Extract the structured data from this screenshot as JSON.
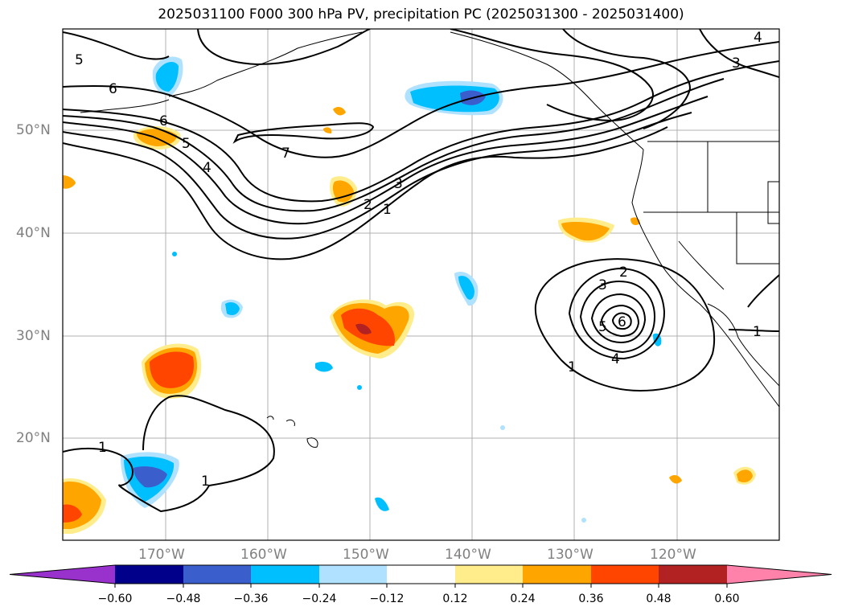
{
  "title": "2025031100 F000 300 hPa PV, precipitation PC (2025031300 - 2025031400)",
  "map": {
    "lat_labels": [
      "50°N",
      "40°N",
      "30°N",
      "20°N"
    ],
    "lon_labels": [
      "170°W",
      "160°W",
      "150°W",
      "140°W",
      "130°W",
      "120°W"
    ],
    "pv_contour_labels": [
      "1",
      "2",
      "3",
      "4",
      "5",
      "6",
      "7"
    ],
    "precip_fill_levels": [
      {
        "range": "-0.60..-0.48",
        "color": "#00008b"
      },
      {
        "range": "-0.48..-0.36",
        "color": "#3a5fcd"
      },
      {
        "range": "-0.36..-0.24",
        "color": "#00bfff"
      },
      {
        "range": "-0.24..-0.12",
        "color": "#b0e2ff"
      },
      {
        "range": "0.12..0.24",
        "color": "#ffec8b"
      },
      {
        "range": "0.24..0.36",
        "color": "#ffa500"
      },
      {
        "range": "0.36..0.48",
        "color": "#ff4500"
      },
      {
        "range": "0.48..0.60",
        "color": "#b22222"
      }
    ]
  },
  "colorbar": {
    "tick_labels": [
      "−0.60",
      "−0.48",
      "−0.36",
      "−0.24",
      "−0.12",
      "0.12",
      "0.24",
      "0.36",
      "0.48",
      "0.60"
    ],
    "colors": [
      "#9932cc",
      "#00008b",
      "#3a5fcd",
      "#00bfff",
      "#b0e2ff",
      "#ffffff",
      "#ffec8b",
      "#ffa500",
      "#ff4500",
      "#b22222",
      "#ff82ab"
    ]
  }
}
